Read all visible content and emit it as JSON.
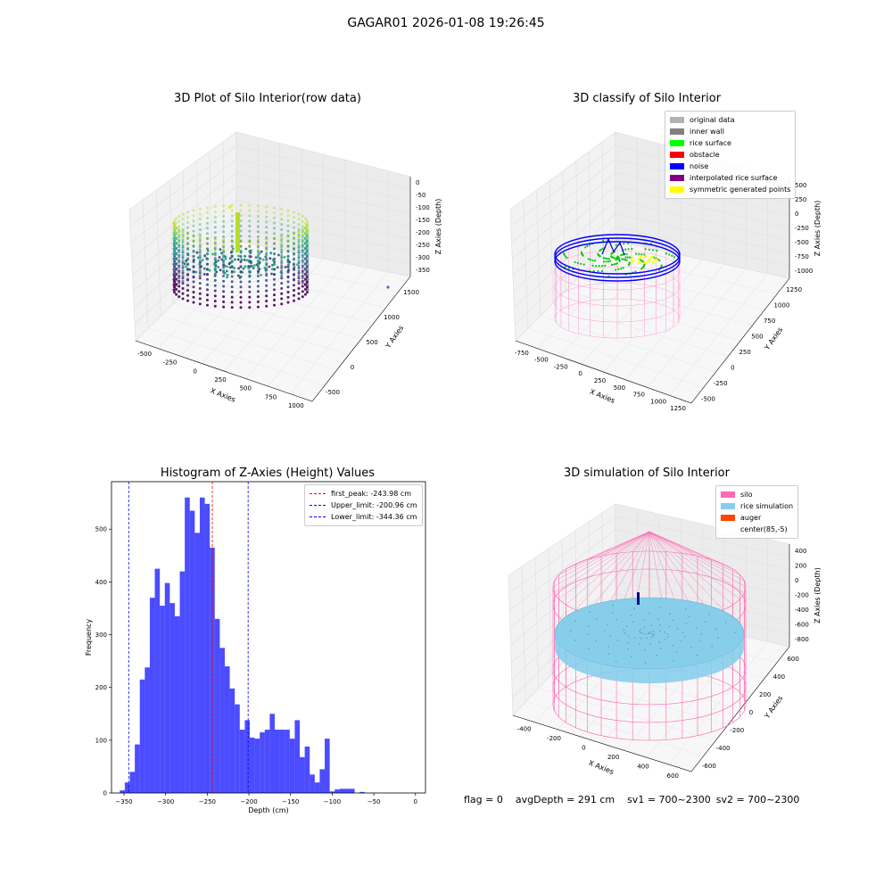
{
  "suptitle": "GAGAR01 2026-01-08 19:26:45",
  "panels": {
    "raw": {
      "title": "3D Plot of Silo Interior(row data)",
      "xlabel": "X Axies",
      "ylabel": "Y Axies",
      "zlabel": "Z Axies (Depth)",
      "xticks": [
        "-500",
        "-250",
        "0",
        "250",
        "500",
        "750",
        "1000"
      ],
      "yticks": [
        "-500",
        "0",
        "500",
        "1000",
        "1500"
      ],
      "zticks": [
        "0",
        "-50",
        "-100",
        "-150",
        "-200",
        "-250",
        "-300",
        "-350"
      ]
    },
    "classify": {
      "title": "3D classify of Silo Interior",
      "xlabel": "X Axies",
      "ylabel": "Y Axies",
      "zlabel": "Z Axies (Depth)",
      "xticks": [
        "-750",
        "-500",
        "-250",
        "0",
        "250",
        "500",
        "750",
        "1000",
        "1250"
      ],
      "yticks": [
        "-500",
        "-250",
        "0",
        "250",
        "500",
        "750",
        "1000",
        "1250"
      ],
      "zticks": [
        "500",
        "250",
        "0",
        "-250",
        "-500",
        "-750",
        "-1000"
      ],
      "legend": [
        {
          "label": "original data",
          "color": "#b3b3b3"
        },
        {
          "label": "inner wall",
          "color": "#808080"
        },
        {
          "label": "rice surface",
          "color": "#00ff00"
        },
        {
          "label": "obstacle",
          "color": "#ff0000"
        },
        {
          "label": "noise",
          "color": "#0000ff"
        },
        {
          "label": "interpolated rice surface",
          "color": "#800080"
        },
        {
          "label": "symmetric generated points",
          "color": "#ffff00"
        }
      ]
    },
    "simulation": {
      "title": "3D simulation of Silo Interior",
      "xlabel": "X Axies",
      "ylabel": "Y Axies",
      "zlabel": "Z Axies (Depth)",
      "xticks": [
        "-400",
        "-200",
        "0",
        "200",
        "400",
        "600"
      ],
      "yticks": [
        "-600",
        "-400",
        "-200",
        "0",
        "200",
        "400",
        "600"
      ],
      "zticks": [
        "400",
        "200",
        "0",
        "-200",
        "-400",
        "-600",
        "-800"
      ],
      "legend": [
        {
          "label": "silo",
          "color": "#ff69b4"
        },
        {
          "label": "rice simulation",
          "color": "#87ceeb"
        },
        {
          "label": "auger",
          "color": "#ff4500"
        },
        {
          "label": "center(85,-5)",
          "color": "#ffffff"
        }
      ]
    }
  },
  "chart_data": {
    "type": "bar",
    "title": "Histogram of Z-Axies (Height) Values",
    "xlabel": "Depth (cm)",
    "ylabel": "Frequency",
    "xlim": [
      -365,
      12
    ],
    "ylim": [
      0,
      590
    ],
    "xticks": [
      -350,
      -300,
      -250,
      -200,
      -150,
      -100,
      -50,
      0
    ],
    "yticks": [
      0,
      100,
      200,
      300,
      400,
      500
    ],
    "bin_start": -355,
    "bin_width": 6,
    "bar_color": "#0000ff",
    "values": [
      5,
      20,
      40,
      92,
      215,
      238,
      370,
      425,
      355,
      398,
      360,
      335,
      420,
      560,
      535,
      493,
      560,
      548,
      465,
      330,
      275,
      240,
      198,
      168,
      120,
      138,
      105,
      103,
      115,
      120,
      150,
      120,
      120,
      120,
      103,
      138,
      68,
      88,
      35,
      20,
      45,
      103,
      3,
      7,
      8,
      8,
      8,
      0,
      2
    ],
    "lines": [
      {
        "label": "first_peak: -243.98 cm",
        "x": -243.98,
        "color": "#ff0000"
      },
      {
        "label": "Upper_limit: -200.96 cm",
        "x": -200.96,
        "color": "#0000ff"
      },
      {
        "label": "Lower_limit: -344.36 cm",
        "x": -344.36,
        "color": "#0000ff"
      }
    ]
  },
  "footer": {
    "flag": "flag = 0",
    "avgdepth": "avgDepth = 291 cm",
    "sv1": "sv1 = 700~2300",
    "sv2": "sv2 = 700~2300"
  }
}
